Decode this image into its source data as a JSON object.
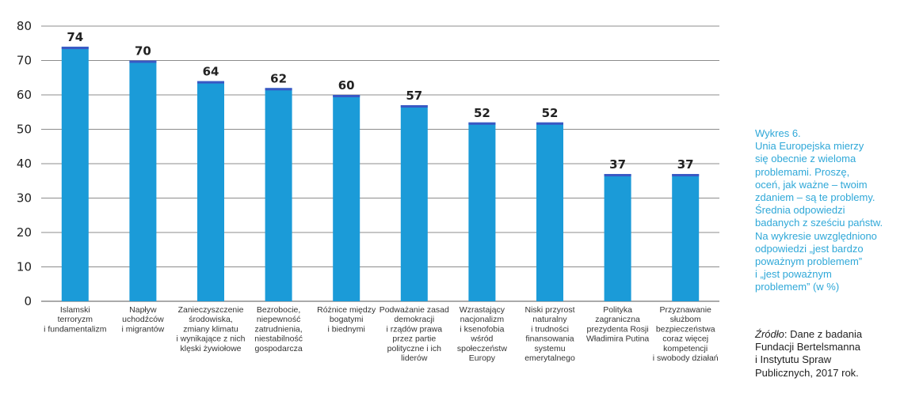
{
  "chart_data": {
    "type": "bar",
    "categories": [
      [
        "Islamski",
        "terroryzm",
        "i fundamentalizm"
      ],
      [
        "Napływ",
        "uchodźców",
        "i migrantów"
      ],
      [
        "Zanieczyszczenie",
        "środowiska,",
        "zmiany klimatu",
        "i wynikające z nich",
        "klęski żywiołowe"
      ],
      [
        "Bezrobocie,",
        "niepewność",
        "zatrudnienia,",
        "niestabilność",
        "gospodarcza"
      ],
      [
        "Różnice między",
        "bogatymi",
        "i biednymi"
      ],
      [
        "Podważanie zasad",
        "demokracji",
        "i rządów prawa",
        "przez partie",
        "polityczne i ich",
        "liderów"
      ],
      [
        "Wzrastający",
        "nacjonalizm",
        "i ksenofobia",
        "wśród",
        "społeczeństw",
        "Europy"
      ],
      [
        "Niski przyrost",
        "naturalny",
        "i trudności",
        "finansowania",
        "systemu",
        "emerytalnego"
      ],
      [
        "Polityka",
        "zagraniczna",
        "prezydenta Rosji",
        "Władimira Putina"
      ],
      [
        "Przyznawanie",
        "służbom",
        "bezpieczeństwa",
        "coraz więcej",
        "kompetencji",
        "i swobody działań"
      ]
    ],
    "values": [
      74,
      70,
      64,
      62,
      60,
      57,
      52,
      52,
      37,
      37
    ],
    "value_labels": [
      "74",
      "70",
      "64",
      "62",
      "60",
      "57",
      "52",
      "52",
      "37",
      "37"
    ],
    "yticks": [
      "0",
      "10",
      "20",
      "30",
      "40",
      "50",
      "60",
      "70",
      "80"
    ],
    "ylim": [
      0,
      80
    ],
    "grid": true,
    "colors": {
      "bar": "#1b9bd8",
      "bar_top": "#3a58c4",
      "grid": "#8c8c8c",
      "axis": "#555555"
    }
  },
  "caption": {
    "lines": [
      "Wykres 6.",
      "Unia Europejska mierzy",
      "się obecnie z wieloma",
      "problemami. Proszę,",
      "oceń, jak ważne – twoim",
      "zdaniem – są te problemy.",
      "Średnia odpowiedzi",
      "badanych z sześciu państw.",
      "Na wykresie uwzględniono",
      "odpowiedzi „jest bardzo",
      "poważnym problemem”",
      "i „jest poważnym",
      "problemem” (w %)"
    ]
  },
  "source": {
    "label": "Źródło",
    "text_lines": [
      ": Dane z badania",
      "Fundacji Bertelsmanna",
      "i Instytutu Spraw",
      "Publicznych, 2017 rok."
    ]
  }
}
